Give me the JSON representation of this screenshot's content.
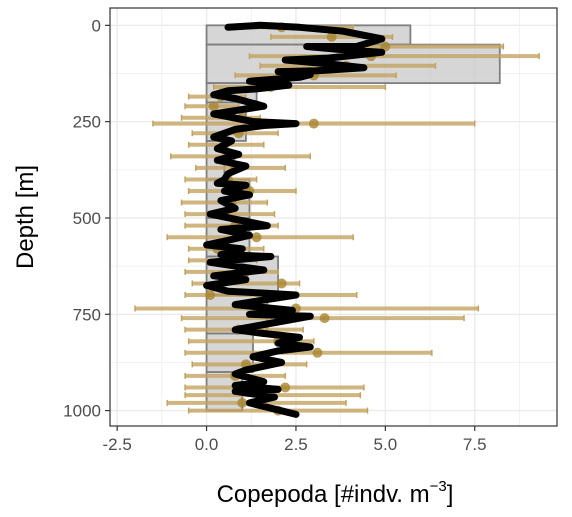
{
  "chart_data": {
    "type": "bar",
    "orientation": "horizontal",
    "ylabel": "Depth [m]",
    "xlabel": {
      "text": "Copepoda [#indv. m",
      "superscript": "−3",
      "suffix": "]"
    },
    "xlim": [
      -2.7,
      9.8
    ],
    "ylim": [
      1040,
      -45
    ],
    "y_reversed": true,
    "grid": true,
    "legend": "none",
    "x_ticks": [
      {
        "value": -2.5,
        "label": "-2.5"
      },
      {
        "value": 0,
        "label": "0.0"
      },
      {
        "value": 2.5,
        "label": "2.5"
      },
      {
        "value": 5,
        "label": "5.0"
      },
      {
        "value": 7.5,
        "label": "7.5"
      }
    ],
    "y_ticks": [
      {
        "value": 0,
        "label": "0"
      },
      {
        "value": 250,
        "label": "250"
      },
      {
        "value": 500,
        "label": "500"
      },
      {
        "value": 750,
        "label": "750"
      },
      {
        "value": 1000,
        "label": "1000"
      }
    ],
    "colors": {
      "grid": "#ebebeb",
      "bar_fill": "#c8c8c8",
      "bar_stroke": "#7f7f7f",
      "error_bar": "#c3a35f",
      "point": "#a8852f",
      "line": "#000000",
      "panel_border": "#333333"
    },
    "depth_bins": [
      {
        "depth_top": 0,
        "depth_bottom": 50,
        "value": 5.7
      },
      {
        "depth_top": 50,
        "depth_bottom": 150,
        "value": 8.2
      },
      {
        "depth_top": 150,
        "depth_bottom": 200,
        "value": 1.4
      },
      {
        "depth_top": 200,
        "depth_bottom": 300,
        "value": 1.1
      },
      {
        "depth_top": 300,
        "depth_bottom": 400,
        "value": 0.5
      },
      {
        "depth_top": 400,
        "depth_bottom": 500,
        "value": 1.2
      },
      {
        "depth_top": 500,
        "depth_bottom": 600,
        "value": 1.2
      },
      {
        "depth_top": 600,
        "depth_bottom": 700,
        "value": 2.0
      },
      {
        "depth_top": 700,
        "depth_bottom": 800,
        "value": 1.7
      },
      {
        "depth_top": 800,
        "depth_bottom": 900,
        "value": 1.3
      },
      {
        "depth_top": 900,
        "depth_bottom": 1000,
        "value": 1.0
      }
    ],
    "samples": [
      {
        "depth": 5,
        "mean": 2.1,
        "low": 1.0,
        "high": 4.1
      },
      {
        "depth": 30,
        "mean": 3.5,
        "low": 1.8,
        "high": 5.2
      },
      {
        "depth": 55,
        "mean": 5.0,
        "low": 2.8,
        "high": 8.3
      },
      {
        "depth": 80,
        "mean": 4.6,
        "low": 1.2,
        "high": 9.3
      },
      {
        "depth": 105,
        "mean": 3.9,
        "low": 1.5,
        "high": 6.4
      },
      {
        "depth": 130,
        "mean": 3.0,
        "low": 0.8,
        "high": 5.3
      },
      {
        "depth": 160,
        "mean": 1.8,
        "low": 0.2,
        "high": 5.0
      },
      {
        "depth": 185,
        "mean": 0.4,
        "low": -0.5,
        "high": 1.1
      },
      {
        "depth": 210,
        "mean": 0.2,
        "low": -0.6,
        "high": 0.9
      },
      {
        "depth": 240,
        "mean": 1.0,
        "low": -0.7,
        "high": 1.5
      },
      {
        "depth": 255,
        "mean": 3.0,
        "low": -1.5,
        "high": 7.5
      },
      {
        "depth": 280,
        "mean": 0.9,
        "low": -0.4,
        "high": 2.0
      },
      {
        "depth": 310,
        "mean": 0.5,
        "low": -0.5,
        "high": 1.6
      },
      {
        "depth": 340,
        "mean": 0.7,
        "low": -1.0,
        "high": 2.9
      },
      {
        "depth": 370,
        "mean": 0.8,
        "low": -0.3,
        "high": 2.2
      },
      {
        "depth": 400,
        "mean": 0.6,
        "low": -0.6,
        "high": 1.4
      },
      {
        "depth": 430,
        "mean": 1.2,
        "low": -0.5,
        "high": 2.5
      },
      {
        "depth": 460,
        "mean": 0.7,
        "low": -0.7,
        "high": 1.7
      },
      {
        "depth": 490,
        "mean": 0.5,
        "low": -0.6,
        "high": 1.9
      },
      {
        "depth": 520,
        "mean": 0.8,
        "low": -0.6,
        "high": 2.0
      },
      {
        "depth": 550,
        "mean": 1.4,
        "low": -1.1,
        "high": 4.1
      },
      {
        "depth": 580,
        "mean": 0.3,
        "low": -0.5,
        "high": 1.6
      },
      {
        "depth": 610,
        "mean": 0.6,
        "low": -0.5,
        "high": 1.4
      },
      {
        "depth": 640,
        "mean": 1.1,
        "low": -0.6,
        "high": 2.0
      },
      {
        "depth": 670,
        "mean": 2.1,
        "low": -0.4,
        "high": 2.6
      },
      {
        "depth": 700,
        "mean": 0.1,
        "low": -0.6,
        "high": 4.2
      },
      {
        "depth": 735,
        "mean": 2.5,
        "low": -2.0,
        "high": 7.6
      },
      {
        "depth": 760,
        "mean": 3.3,
        "low": -0.7,
        "high": 7.2
      },
      {
        "depth": 790,
        "mean": 0.9,
        "low": -0.6,
        "high": 2.7
      },
      {
        "depth": 820,
        "mean": 2.0,
        "low": -0.5,
        "high": 3.0
      },
      {
        "depth": 850,
        "mean": 3.1,
        "low": -0.6,
        "high": 6.3
      },
      {
        "depth": 880,
        "mean": 1.1,
        "low": -0.4,
        "high": 2.8
      },
      {
        "depth": 910,
        "mean": 0.8,
        "low": -0.6,
        "high": 2.2
      },
      {
        "depth": 940,
        "mean": 2.2,
        "low": -0.6,
        "high": 4.4
      },
      {
        "depth": 960,
        "mean": 1.5,
        "low": -0.6,
        "high": 4.3
      },
      {
        "depth": 980,
        "mean": 1.0,
        "low": -1.1,
        "high": 3.9
      },
      {
        "depth": 1000,
        "mean": 2.0,
        "low": -0.5,
        "high": 4.5
      }
    ],
    "line": [
      [
        0.6,
        5
      ],
      [
        1.5,
        0
      ],
      [
        2.6,
        5
      ],
      [
        3.8,
        15
      ],
      [
        4.9,
        35
      ],
      [
        4.2,
        55
      ],
      [
        2.8,
        55
      ],
      [
        4.0,
        65
      ],
      [
        4.9,
        70
      ],
      [
        3.4,
        85
      ],
      [
        2.2,
        90
      ],
      [
        3.4,
        100
      ],
      [
        4.4,
        110
      ],
      [
        3.1,
        118
      ],
      [
        2.0,
        120
      ],
      [
        2.9,
        128
      ],
      [
        2.6,
        135
      ],
      [
        1.2,
        145
      ],
      [
        2.3,
        155
      ],
      [
        1.4,
        165
      ],
      [
        0.6,
        170
      ],
      [
        0.2,
        180
      ],
      [
        0.8,
        190
      ],
      [
        1.6,
        210
      ],
      [
        0.2,
        230
      ],
      [
        1.3,
        250
      ],
      [
        2.5,
        255
      ],
      [
        1.6,
        260
      ],
      [
        0.8,
        270
      ],
      [
        0.2,
        290
      ],
      [
        0.7,
        300
      ],
      [
        0.3,
        320
      ],
      [
        0.9,
        335
      ],
      [
        0.3,
        350
      ],
      [
        1.1,
        365
      ],
      [
        0.6,
        385
      ],
      [
        0.5,
        400
      ],
      [
        0.3,
        410
      ],
      [
        1.1,
        415
      ],
      [
        0.5,
        430
      ],
      [
        1.2,
        440
      ],
      [
        0.4,
        455
      ],
      [
        0.8,
        475
      ],
      [
        0.1,
        490
      ],
      [
        0.9,
        505
      ],
      [
        1.7,
        520
      ],
      [
        0.4,
        530
      ],
      [
        1.2,
        545
      ],
      [
        0.5,
        560
      ],
      [
        0.0,
        570
      ],
      [
        1.0,
        580
      ],
      [
        0.4,
        595
      ],
      [
        1.8,
        600
      ],
      [
        0.1,
        615
      ],
      [
        0.8,
        625
      ],
      [
        1.6,
        635
      ],
      [
        0.2,
        650
      ],
      [
        1.1,
        660
      ],
      [
        0.0,
        675
      ],
      [
        0.6,
        690
      ],
      [
        1.6,
        695
      ],
      [
        2.5,
        700
      ],
      [
        1.8,
        710
      ],
      [
        0.8,
        725
      ],
      [
        2.4,
        740
      ],
      [
        1.2,
        750
      ],
      [
        2.9,
        755
      ],
      [
        2.0,
        770
      ],
      [
        0.8,
        790
      ],
      [
        1.6,
        800
      ],
      [
        2.6,
        810
      ],
      [
        2.0,
        825
      ],
      [
        2.9,
        835
      ],
      [
        2.0,
        845
      ],
      [
        1.3,
        860
      ],
      [
        2.1,
        875
      ],
      [
        1.1,
        895
      ],
      [
        0.8,
        905
      ],
      [
        1.6,
        925
      ],
      [
        0.8,
        935
      ],
      [
        2.0,
        945
      ],
      [
        0.8,
        950
      ],
      [
        1.9,
        965
      ],
      [
        1.2,
        980
      ],
      [
        2.5,
        1010
      ]
    ]
  }
}
